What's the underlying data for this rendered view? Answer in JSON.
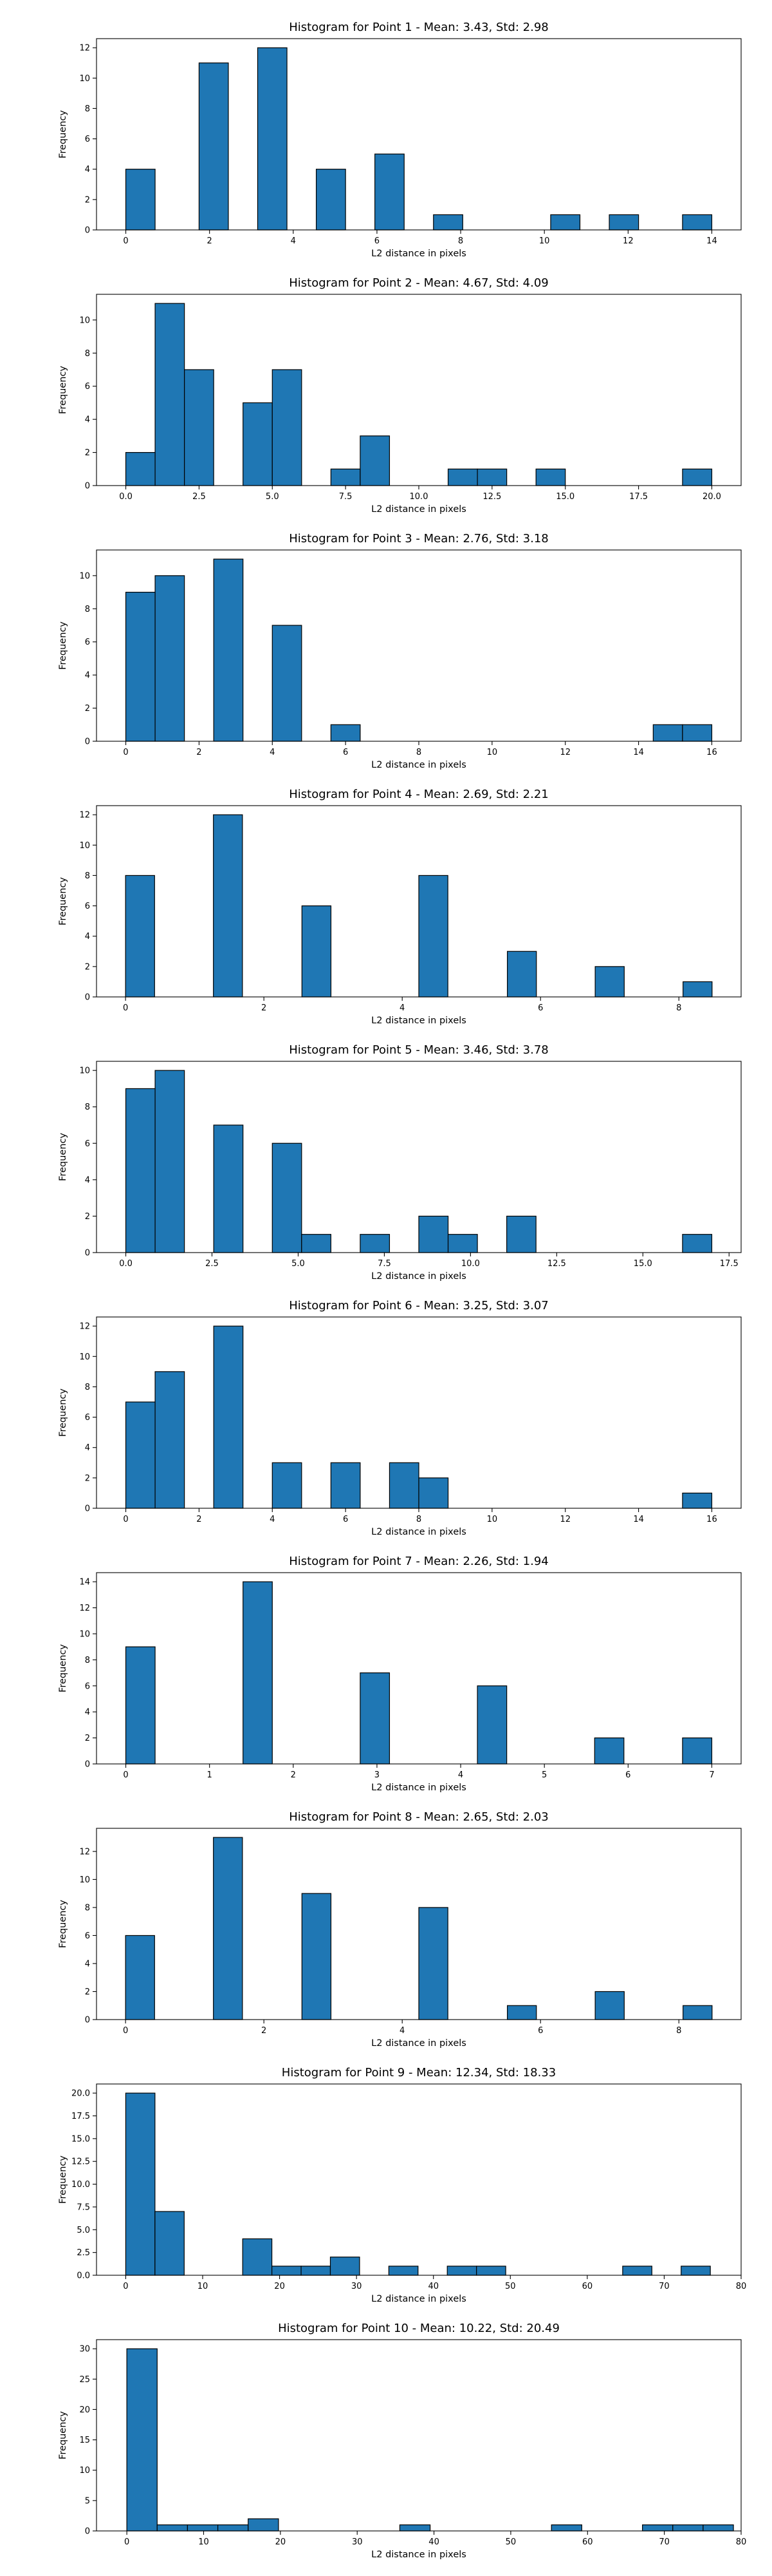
{
  "chart_data": [
    {
      "type": "bar",
      "title": "Histogram for Point 1 - Mean: 3.43, Std: 2.98",
      "xlabel": "L2 distance in pixels",
      "ylabel": "Frequency",
      "xlim": [
        -0.7,
        14.7
      ],
      "ylim": [
        0,
        12.6
      ],
      "xticks": [
        0,
        2,
        4,
        6,
        8,
        10,
        12,
        14
      ],
      "yticks": [
        0,
        2,
        4,
        6,
        8,
        10,
        12
      ],
      "bin_width": 0.7,
      "bins": [
        [
          0,
          4
        ],
        [
          1.75,
          11
        ],
        [
          3.15,
          12
        ],
        [
          4.55,
          4
        ],
        [
          5.95,
          5
        ],
        [
          7.35,
          1
        ],
        [
          10.15,
          1
        ],
        [
          11.55,
          1
        ],
        [
          13.3,
          1
        ]
      ]
    },
    {
      "type": "bar",
      "title": "Histogram for Point 2 - Mean: 4.67, Std: 4.09",
      "xlabel": "L2 distance in pixels",
      "ylabel": "Frequency",
      "xlim": [
        -1.0,
        21.0
      ],
      "ylim": [
        0,
        11.55
      ],
      "xticks": [
        0.0,
        2.5,
        5.0,
        7.5,
        10.0,
        12.5,
        15.0,
        17.5,
        20.0
      ],
      "yticks": [
        0,
        2,
        4,
        6,
        8,
        10
      ],
      "bin_width": 1.0,
      "bins": [
        [
          0,
          2
        ],
        [
          1,
          11
        ],
        [
          2,
          7
        ],
        [
          4,
          5
        ],
        [
          5,
          7
        ],
        [
          7,
          1
        ],
        [
          8,
          3
        ],
        [
          11,
          1
        ],
        [
          12,
          1
        ],
        [
          14,
          1
        ],
        [
          19,
          1
        ]
      ]
    },
    {
      "type": "bar",
      "title": "Histogram for Point 3 - Mean: 2.76, Std: 3.18",
      "xlabel": "L2 distance in pixels",
      "ylabel": "Frequency",
      "xlim": [
        -0.8,
        16.8
      ],
      "ylim": [
        0,
        11.55
      ],
      "xticks": [
        0,
        2,
        4,
        6,
        8,
        10,
        12,
        14,
        16
      ],
      "yticks": [
        0,
        2,
        4,
        6,
        8,
        10
      ],
      "bin_width": 0.8,
      "bins": [
        [
          0,
          9
        ],
        [
          0.8,
          10
        ],
        [
          2.4,
          11
        ],
        [
          4.0,
          7
        ],
        [
          5.6,
          1
        ],
        [
          14.4,
          1
        ],
        [
          15.2,
          1
        ]
      ]
    },
    {
      "type": "bar",
      "title": "Histogram for Point 4 - Mean: 2.69, Std: 2.21",
      "xlabel": "L2 distance in pixels",
      "ylabel": "Frequency",
      "xlim": [
        -0.42,
        8.9
      ],
      "ylim": [
        0,
        12.6
      ],
      "xticks": [
        0,
        2,
        4,
        6,
        8
      ],
      "yticks": [
        0,
        2,
        4,
        6,
        8,
        10,
        12
      ],
      "bin_width": 0.42,
      "bins": [
        [
          0,
          8
        ],
        [
          1.27,
          12
        ],
        [
          2.55,
          6
        ],
        [
          4.24,
          8
        ],
        [
          5.52,
          3
        ],
        [
          6.79,
          2
        ],
        [
          8.06,
          1
        ]
      ]
    },
    {
      "type": "bar",
      "title": "Histogram for Point 5 - Mean: 3.46, Std: 3.78",
      "xlabel": "L2 distance in pixels",
      "ylabel": "Frequency",
      "xlim": [
        -0.85,
        17.85
      ],
      "ylim": [
        0,
        10.5
      ],
      "xticks": [
        0.0,
        2.5,
        5.0,
        7.5,
        10.0,
        12.5,
        15.0,
        17.5
      ],
      "yticks": [
        0,
        2,
        4,
        6,
        8,
        10
      ],
      "bin_width": 0.85,
      "bins": [
        [
          0,
          9
        ],
        [
          0.85,
          10
        ],
        [
          2.55,
          7
        ],
        [
          4.25,
          6
        ],
        [
          5.1,
          1
        ],
        [
          6.8,
          1
        ],
        [
          8.5,
          2
        ],
        [
          9.35,
          1
        ],
        [
          11.05,
          2
        ],
        [
          16.15,
          1
        ]
      ]
    },
    {
      "type": "bar",
      "title": "Histogram for Point 6 - Mean: 3.25, Std: 3.07",
      "xlabel": "L2 distance in pixels",
      "ylabel": "Frequency",
      "xlim": [
        -0.8,
        16.8
      ],
      "ylim": [
        0,
        12.6
      ],
      "xticks": [
        0,
        2,
        4,
        6,
        8,
        10,
        12,
        14,
        16
      ],
      "yticks": [
        0,
        2,
        4,
        6,
        8,
        10,
        12
      ],
      "bin_width": 0.8,
      "bins": [
        [
          0,
          7
        ],
        [
          0.8,
          9
        ],
        [
          2.4,
          12
        ],
        [
          4.0,
          3
        ],
        [
          5.6,
          3
        ],
        [
          7.2,
          3
        ],
        [
          8.0,
          2
        ],
        [
          15.2,
          1
        ]
      ]
    },
    {
      "type": "bar",
      "title": "Histogram for Point 7 - Mean: 2.26, Std: 1.94",
      "xlabel": "L2 distance in pixels",
      "ylabel": "Frequency",
      "xlim": [
        -0.35,
        7.35
      ],
      "ylim": [
        0,
        14.7
      ],
      "xticks": [
        0,
        1,
        2,
        3,
        4,
        5,
        6,
        7
      ],
      "yticks": [
        0,
        2,
        4,
        6,
        8,
        10,
        12,
        14
      ],
      "bin_width": 0.35,
      "bins": [
        [
          0,
          9
        ],
        [
          1.4,
          14
        ],
        [
          2.8,
          7
        ],
        [
          4.2,
          6
        ],
        [
          5.6,
          2
        ],
        [
          6.65,
          2
        ]
      ]
    },
    {
      "type": "bar",
      "title": "Histogram for Point 8 - Mean: 2.65, Std: 2.03",
      "xlabel": "L2 distance in pixels",
      "ylabel": "Frequency",
      "xlim": [
        -0.42,
        8.9
      ],
      "ylim": [
        0,
        13.65
      ],
      "xticks": [
        0,
        2,
        4,
        6,
        8
      ],
      "yticks": [
        0,
        2,
        4,
        6,
        8,
        10,
        12
      ],
      "bin_width": 0.42,
      "bins": [
        [
          0,
          6
        ],
        [
          1.27,
          13
        ],
        [
          2.55,
          9
        ],
        [
          4.24,
          8
        ],
        [
          5.52,
          1
        ],
        [
          6.79,
          2
        ],
        [
          8.06,
          1
        ]
      ]
    },
    {
      "type": "bar",
      "title": "Histogram for Point 9 - Mean: 12.34, Std: 18.33",
      "xlabel": "L2 distance in pixels",
      "ylabel": "Frequency",
      "xlim": [
        -3.8,
        80
      ],
      "ylim": [
        0,
        21
      ],
      "xticks": [
        0,
        10,
        20,
        30,
        40,
        50,
        60,
        70,
        80
      ],
      "yticks": [
        0.0,
        2.5,
        5.0,
        7.5,
        10.0,
        12.5,
        15.0,
        17.5,
        20.0
      ],
      "bin_width": 3.8,
      "bins": [
        [
          0,
          20
        ],
        [
          3.8,
          7
        ],
        [
          15.2,
          4
        ],
        [
          19,
          1
        ],
        [
          22.8,
          1
        ],
        [
          26.6,
          2
        ],
        [
          34.2,
          1
        ],
        [
          41.8,
          1
        ],
        [
          45.6,
          1
        ],
        [
          64.6,
          1
        ],
        [
          72.2,
          1
        ]
      ]
    },
    {
      "type": "bar",
      "title": "Histogram for Point 10 - Mean: 10.22, Std: 20.49",
      "xlabel": "L2 distance in pixels",
      "ylabel": "Frequency",
      "xlim": [
        -3.95,
        80
      ],
      "ylim": [
        0,
        31.5
      ],
      "xticks": [
        0,
        10,
        20,
        30,
        40,
        50,
        60,
        70,
        80
      ],
      "yticks": [
        0,
        5,
        10,
        15,
        20,
        25,
        30
      ],
      "bin_width": 3.95,
      "bins": [
        [
          0,
          30
        ],
        [
          3.95,
          1
        ],
        [
          7.9,
          1
        ],
        [
          11.85,
          1
        ],
        [
          15.8,
          2
        ],
        [
          35.55,
          1
        ],
        [
          55.3,
          1
        ],
        [
          67.15,
          1
        ],
        [
          71.1,
          1
        ],
        [
          75.05,
          1
        ]
      ]
    }
  ]
}
